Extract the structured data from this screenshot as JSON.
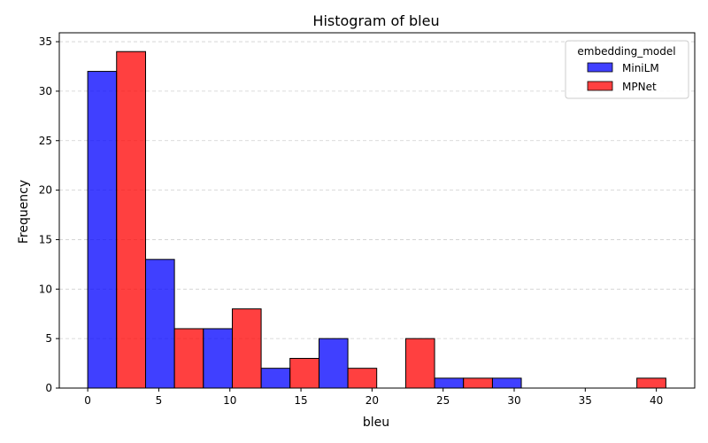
{
  "chart_data": {
    "type": "bar",
    "subtype": "histogram",
    "title": "Histogram of bleu",
    "xlabel": "bleu",
    "ylabel": "Frequency",
    "xlim": [
      -2.0,
      42.7
    ],
    "ylim": [
      0,
      35.9
    ],
    "xticks": [
      0,
      5,
      10,
      15,
      20,
      25,
      30,
      35,
      40
    ],
    "yticks": [
      0,
      5,
      10,
      15,
      20,
      25,
      30,
      35
    ],
    "grid": "y-dashed",
    "legend": {
      "title": "embedding_model",
      "placement": "top-right"
    },
    "bins": [
      [
        0.0,
        2.03
      ],
      [
        2.03,
        4.07
      ],
      [
        4.07,
        6.1
      ],
      [
        6.1,
        8.13
      ],
      [
        8.13,
        10.17
      ],
      [
        10.17,
        12.2
      ],
      [
        12.2,
        14.23
      ],
      [
        14.23,
        16.27
      ],
      [
        16.27,
        18.3
      ],
      [
        18.3,
        20.33
      ],
      [
        20.33,
        22.37
      ],
      [
        22.37,
        24.4
      ],
      [
        24.4,
        26.43
      ],
      [
        26.43,
        28.47
      ],
      [
        28.47,
        30.5
      ],
      [
        30.5,
        32.53
      ],
      [
        32.53,
        34.57
      ],
      [
        34.57,
        36.6
      ],
      [
        36.6,
        38.63
      ],
      [
        38.63,
        40.67
      ]
    ],
    "series": [
      {
        "name": "MiniLM",
        "color": "#0000ff",
        "values": [
          32,
          0,
          13,
          0,
          6,
          0,
          2,
          0,
          5,
          0,
          0,
          0,
          1,
          0,
          1,
          0,
          0,
          0,
          0,
          0
        ]
      },
      {
        "name": "MPNet",
        "color": "#ff0000",
        "values": [
          0,
          34,
          0,
          6,
          0,
          8,
          0,
          3,
          0,
          2,
          0,
          5,
          0,
          1,
          0,
          0,
          0,
          0,
          0,
          1
        ]
      }
    ]
  }
}
